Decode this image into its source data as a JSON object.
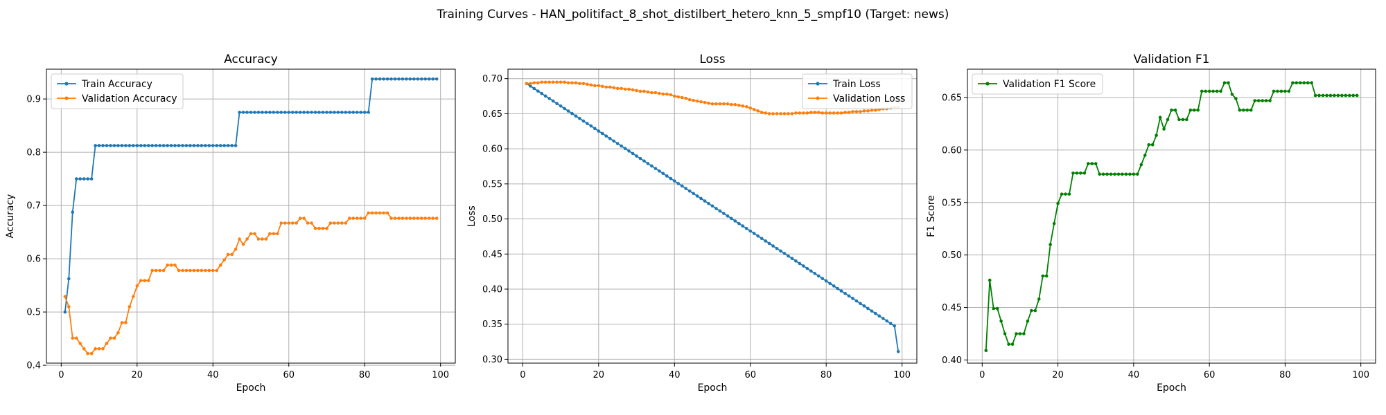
{
  "figure": {
    "suptitle": "Training Curves - HAN_politifact_8_shot_distilbert_hetero_knn_5_smpf10 (Target: news)"
  },
  "colors": {
    "blue": "#1f77b4",
    "orange": "#ff7f0e",
    "green": "#008000"
  },
  "chart_data": [
    {
      "type": "line",
      "title": "Accuracy",
      "xlabel": "Epoch",
      "ylabel": "Accuracy",
      "xlim": [
        -3.9,
        103.9
      ],
      "ylim": [
        0.404,
        0.956
      ],
      "xticks": [
        0,
        20,
        40,
        60,
        80,
        100
      ],
      "yticks": [
        0.4,
        0.5,
        0.6,
        0.7,
        0.8,
        0.9
      ],
      "grid": true,
      "legend": "top-left",
      "x_range": [
        1,
        99
      ],
      "series": [
        {
          "name": "Train Accuracy",
          "color": "#1f77b4",
          "values": [
            0.5,
            0.5625,
            0.6875,
            0.75,
            0.75,
            0.75,
            0.75,
            0.75,
            0.8125,
            0.8125,
            0.8125,
            0.8125,
            0.8125,
            0.8125,
            0.8125,
            0.8125,
            0.8125,
            0.8125,
            0.8125,
            0.8125,
            0.8125,
            0.8125,
            0.8125,
            0.8125,
            0.8125,
            0.8125,
            0.8125,
            0.8125,
            0.8125,
            0.8125,
            0.8125,
            0.8125,
            0.8125,
            0.8125,
            0.8125,
            0.8125,
            0.8125,
            0.8125,
            0.8125,
            0.8125,
            0.8125,
            0.8125,
            0.8125,
            0.8125,
            0.8125,
            0.8125,
            0.875,
            0.875,
            0.875,
            0.875,
            0.875,
            0.875,
            0.875,
            0.875,
            0.875,
            0.875,
            0.875,
            0.875,
            0.875,
            0.875,
            0.875,
            0.875,
            0.875,
            0.875,
            0.875,
            0.875,
            0.875,
            0.875,
            0.875,
            0.875,
            0.875,
            0.875,
            0.875,
            0.875,
            0.875,
            0.875,
            0.875,
            0.875,
            0.875,
            0.875,
            0.875,
            0.9375,
            0.9375,
            0.9375,
            0.9375,
            0.9375,
            0.9375,
            0.9375,
            0.9375,
            0.9375,
            0.9375,
            0.9375,
            0.9375,
            0.9375,
            0.9375,
            0.9375,
            0.9375,
            0.9375,
            0.9375
          ]
        },
        {
          "name": "Validation Accuracy",
          "color": "#ff7f0e",
          "values": [
            0.529,
            0.51,
            0.451,
            0.451,
            0.441,
            0.431,
            0.422,
            0.422,
            0.431,
            0.431,
            0.431,
            0.441,
            0.451,
            0.451,
            0.461,
            0.48,
            0.48,
            0.51,
            0.529,
            0.549,
            0.559,
            0.559,
            0.559,
            0.578,
            0.578,
            0.578,
            0.578,
            0.588,
            0.588,
            0.588,
            0.578,
            0.578,
            0.578,
            0.578,
            0.578,
            0.578,
            0.578,
            0.578,
            0.578,
            0.578,
            0.578,
            0.588,
            0.598,
            0.608,
            0.608,
            0.618,
            0.637,
            0.627,
            0.637,
            0.647,
            0.647,
            0.637,
            0.637,
            0.637,
            0.647,
            0.647,
            0.647,
            0.667,
            0.667,
            0.667,
            0.667,
            0.667,
            0.676,
            0.676,
            0.667,
            0.667,
            0.657,
            0.657,
            0.657,
            0.657,
            0.667,
            0.667,
            0.667,
            0.667,
            0.667,
            0.676,
            0.676,
            0.676,
            0.676,
            0.676,
            0.686,
            0.686,
            0.686,
            0.686,
            0.686,
            0.686,
            0.676,
            0.676,
            0.676,
            0.676,
            0.676,
            0.676,
            0.676,
            0.676,
            0.676,
            0.676,
            0.676,
            0.676,
            0.676
          ]
        }
      ]
    },
    {
      "type": "line",
      "title": "Loss",
      "xlabel": "Epoch",
      "ylabel": "Loss",
      "xlim": [
        -3.9,
        103.9
      ],
      "ylim": [
        0.2945,
        0.7135
      ],
      "xticks": [
        0,
        20,
        40,
        60,
        80,
        100
      ],
      "yticks": [
        0.3,
        0.35,
        0.4,
        0.45,
        0.5,
        0.55,
        0.6,
        0.65,
        0.7
      ],
      "grid": true,
      "legend": "top-right",
      "x_range": [
        1,
        99
      ],
      "series": [
        {
          "name": "Train Loss",
          "color": "#1f77b4",
          "values": [
            0.693,
            0.6895,
            0.6859,
            0.6823,
            0.6788,
            0.6752,
            0.6717,
            0.6681,
            0.6645,
            0.661,
            0.6574,
            0.6538,
            0.6503,
            0.6467,
            0.6432,
            0.6396,
            0.636,
            0.6325,
            0.6289,
            0.6253,
            0.6218,
            0.6182,
            0.6147,
            0.6111,
            0.6075,
            0.604,
            0.6004,
            0.5968,
            0.5933,
            0.5897,
            0.5862,
            0.5826,
            0.579,
            0.5755,
            0.5719,
            0.5683,
            0.5648,
            0.5612,
            0.5577,
            0.5541,
            0.5505,
            0.547,
            0.5434,
            0.5398,
            0.5363,
            0.5327,
            0.5292,
            0.5256,
            0.522,
            0.5185,
            0.5149,
            0.5113,
            0.5078,
            0.5042,
            0.5007,
            0.4971,
            0.4935,
            0.49,
            0.4864,
            0.4828,
            0.4793,
            0.4757,
            0.4722,
            0.4686,
            0.465,
            0.4615,
            0.4579,
            0.4543,
            0.4508,
            0.4472,
            0.4437,
            0.4401,
            0.4365,
            0.433,
            0.4294,
            0.4258,
            0.4223,
            0.4187,
            0.4152,
            0.4116,
            0.408,
            0.4045,
            0.4009,
            0.3973,
            0.3938,
            0.3902,
            0.3867,
            0.3831,
            0.3795,
            0.376,
            0.3724,
            0.3688,
            0.3653,
            0.3617,
            0.3582,
            0.3546,
            0.351,
            0.3475,
            0.311
          ]
        },
        {
          "name": "Validation Loss",
          "color": "#ff7f0e",
          "values": [
            0.693,
            0.693,
            0.694,
            0.694,
            0.695,
            0.695,
            0.695,
            0.695,
            0.695,
            0.695,
            0.695,
            0.694,
            0.694,
            0.694,
            0.693,
            0.693,
            0.692,
            0.691,
            0.69,
            0.69,
            0.689,
            0.688,
            0.688,
            0.687,
            0.686,
            0.686,
            0.685,
            0.685,
            0.684,
            0.683,
            0.682,
            0.682,
            0.681,
            0.68,
            0.68,
            0.679,
            0.678,
            0.678,
            0.677,
            0.675,
            0.674,
            0.673,
            0.672,
            0.67,
            0.669,
            0.668,
            0.667,
            0.666,
            0.665,
            0.664,
            0.664,
            0.664,
            0.664,
            0.664,
            0.663,
            0.663,
            0.662,
            0.661,
            0.66,
            0.658,
            0.656,
            0.654,
            0.652,
            0.651,
            0.65,
            0.65,
            0.65,
            0.65,
            0.65,
            0.65,
            0.65,
            0.651,
            0.651,
            0.651,
            0.651,
            0.652,
            0.652,
            0.652,
            0.651,
            0.651,
            0.651,
            0.651,
            0.651,
            0.651,
            0.652,
            0.652,
            0.653,
            0.653,
            0.653,
            0.654,
            0.654,
            0.655,
            0.655,
            0.656,
            0.657,
            0.657,
            0.658,
            0.659,
            0.659
          ]
        }
      ]
    },
    {
      "type": "line",
      "title": "Validation F1",
      "xlabel": "Epoch",
      "ylabel": "F1 Score",
      "xlim": [
        -3.9,
        103.9
      ],
      "ylim": [
        0.397,
        0.677
      ],
      "xticks": [
        0,
        20,
        40,
        60,
        80,
        100
      ],
      "yticks": [
        0.4,
        0.45,
        0.5,
        0.55,
        0.6,
        0.65
      ],
      "grid": true,
      "legend": "top-left",
      "x_range": [
        1,
        99
      ],
      "series": [
        {
          "name": "Validation F1 Score",
          "color": "#008000",
          "values": [
            0.409,
            0.476,
            0.449,
            0.449,
            0.437,
            0.425,
            0.415,
            0.415,
            0.425,
            0.425,
            0.425,
            0.437,
            0.447,
            0.447,
            0.458,
            0.48,
            0.48,
            0.51,
            0.53,
            0.549,
            0.558,
            0.558,
            0.558,
            0.578,
            0.578,
            0.578,
            0.578,
            0.587,
            0.587,
            0.587,
            0.577,
            0.577,
            0.577,
            0.577,
            0.577,
            0.577,
            0.577,
            0.577,
            0.577,
            0.577,
            0.577,
            0.586,
            0.595,
            0.605,
            0.605,
            0.614,
            0.631,
            0.62,
            0.629,
            0.638,
            0.638,
            0.629,
            0.629,
            0.629,
            0.638,
            0.638,
            0.638,
            0.656,
            0.656,
            0.656,
            0.656,
            0.656,
            0.656,
            0.664,
            0.664,
            0.653,
            0.649,
            0.638,
            0.638,
            0.638,
            0.638,
            0.647,
            0.647,
            0.647,
            0.647,
            0.647,
            0.656,
            0.656,
            0.656,
            0.656,
            0.656,
            0.664,
            0.664,
            0.664,
            0.664,
            0.664,
            0.664,
            0.652,
            0.652,
            0.652,
            0.652,
            0.652,
            0.652,
            0.652,
            0.652,
            0.652,
            0.652,
            0.652,
            0.652
          ]
        }
      ]
    }
  ]
}
